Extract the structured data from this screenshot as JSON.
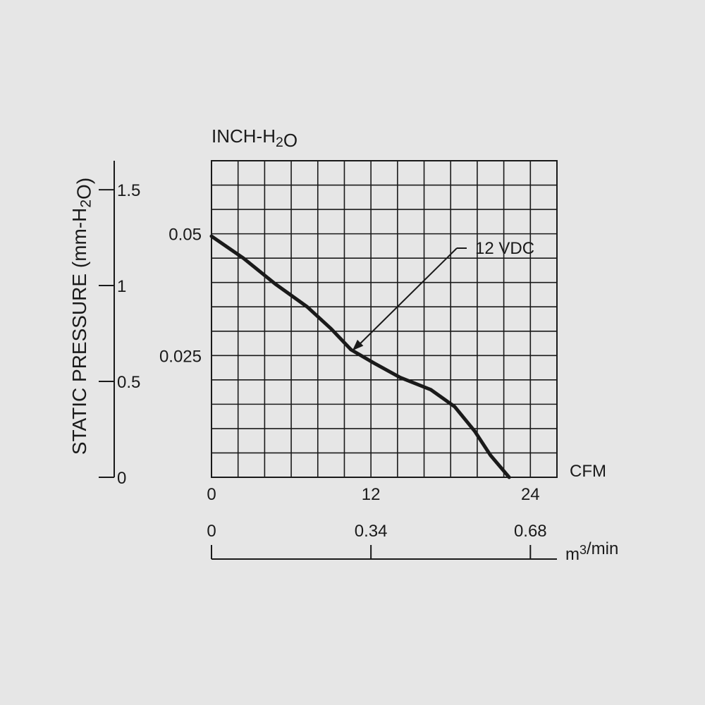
{
  "chart_data": {
    "type": "line",
    "title": "",
    "top_axis_label": "INCH-H₂O",
    "left_axis_label": "STATIC PRESSURE (mm-H₂O)",
    "x_unit_label": "CFM",
    "x2_unit_label": "m³/min",
    "x": {
      "min": 0,
      "max": 26,
      "ticks": [
        0,
        12,
        24
      ],
      "tick_labels": [
        "0",
        "12",
        "24"
      ],
      "grid_step": 2
    },
    "x2": {
      "ticks": [
        0,
        0.34,
        0.68
      ],
      "tick_labels": [
        "0",
        "0.34",
        "0.68"
      ],
      "cfm_equivalent": [
        0,
        12,
        24
      ]
    },
    "y_inch": {
      "min": 0,
      "max": 0.065,
      "ticks": [
        0.025,
        0.05
      ],
      "tick_labels": [
        "0.025",
        "0.05"
      ],
      "grid_step": 0.005
    },
    "y_mm": {
      "min": 0,
      "max": 1.651,
      "ticks": [
        0,
        0.5,
        1,
        1.5
      ],
      "tick_labels": [
        "0",
        "0.5",
        "1",
        "1.5"
      ]
    },
    "grid": true,
    "series": [
      {
        "name": "12 VDC",
        "points": [
          [
            0,
            0.0495
          ],
          [
            2.4,
            0.045
          ],
          [
            4.8,
            0.0397
          ],
          [
            7.2,
            0.035
          ],
          [
            9.0,
            0.0305
          ],
          [
            10.5,
            0.0262
          ],
          [
            12.2,
            0.0235
          ],
          [
            14.2,
            0.0205
          ],
          [
            16.5,
            0.018
          ],
          [
            18.3,
            0.0145
          ],
          [
            19.8,
            0.0095
          ],
          [
            21.0,
            0.0045
          ],
          [
            22.4,
            0
          ]
        ]
      }
    ],
    "annotations": [
      {
        "text": "12 VDC",
        "points_to": [
          10.6,
          0.026
        ]
      }
    ]
  }
}
